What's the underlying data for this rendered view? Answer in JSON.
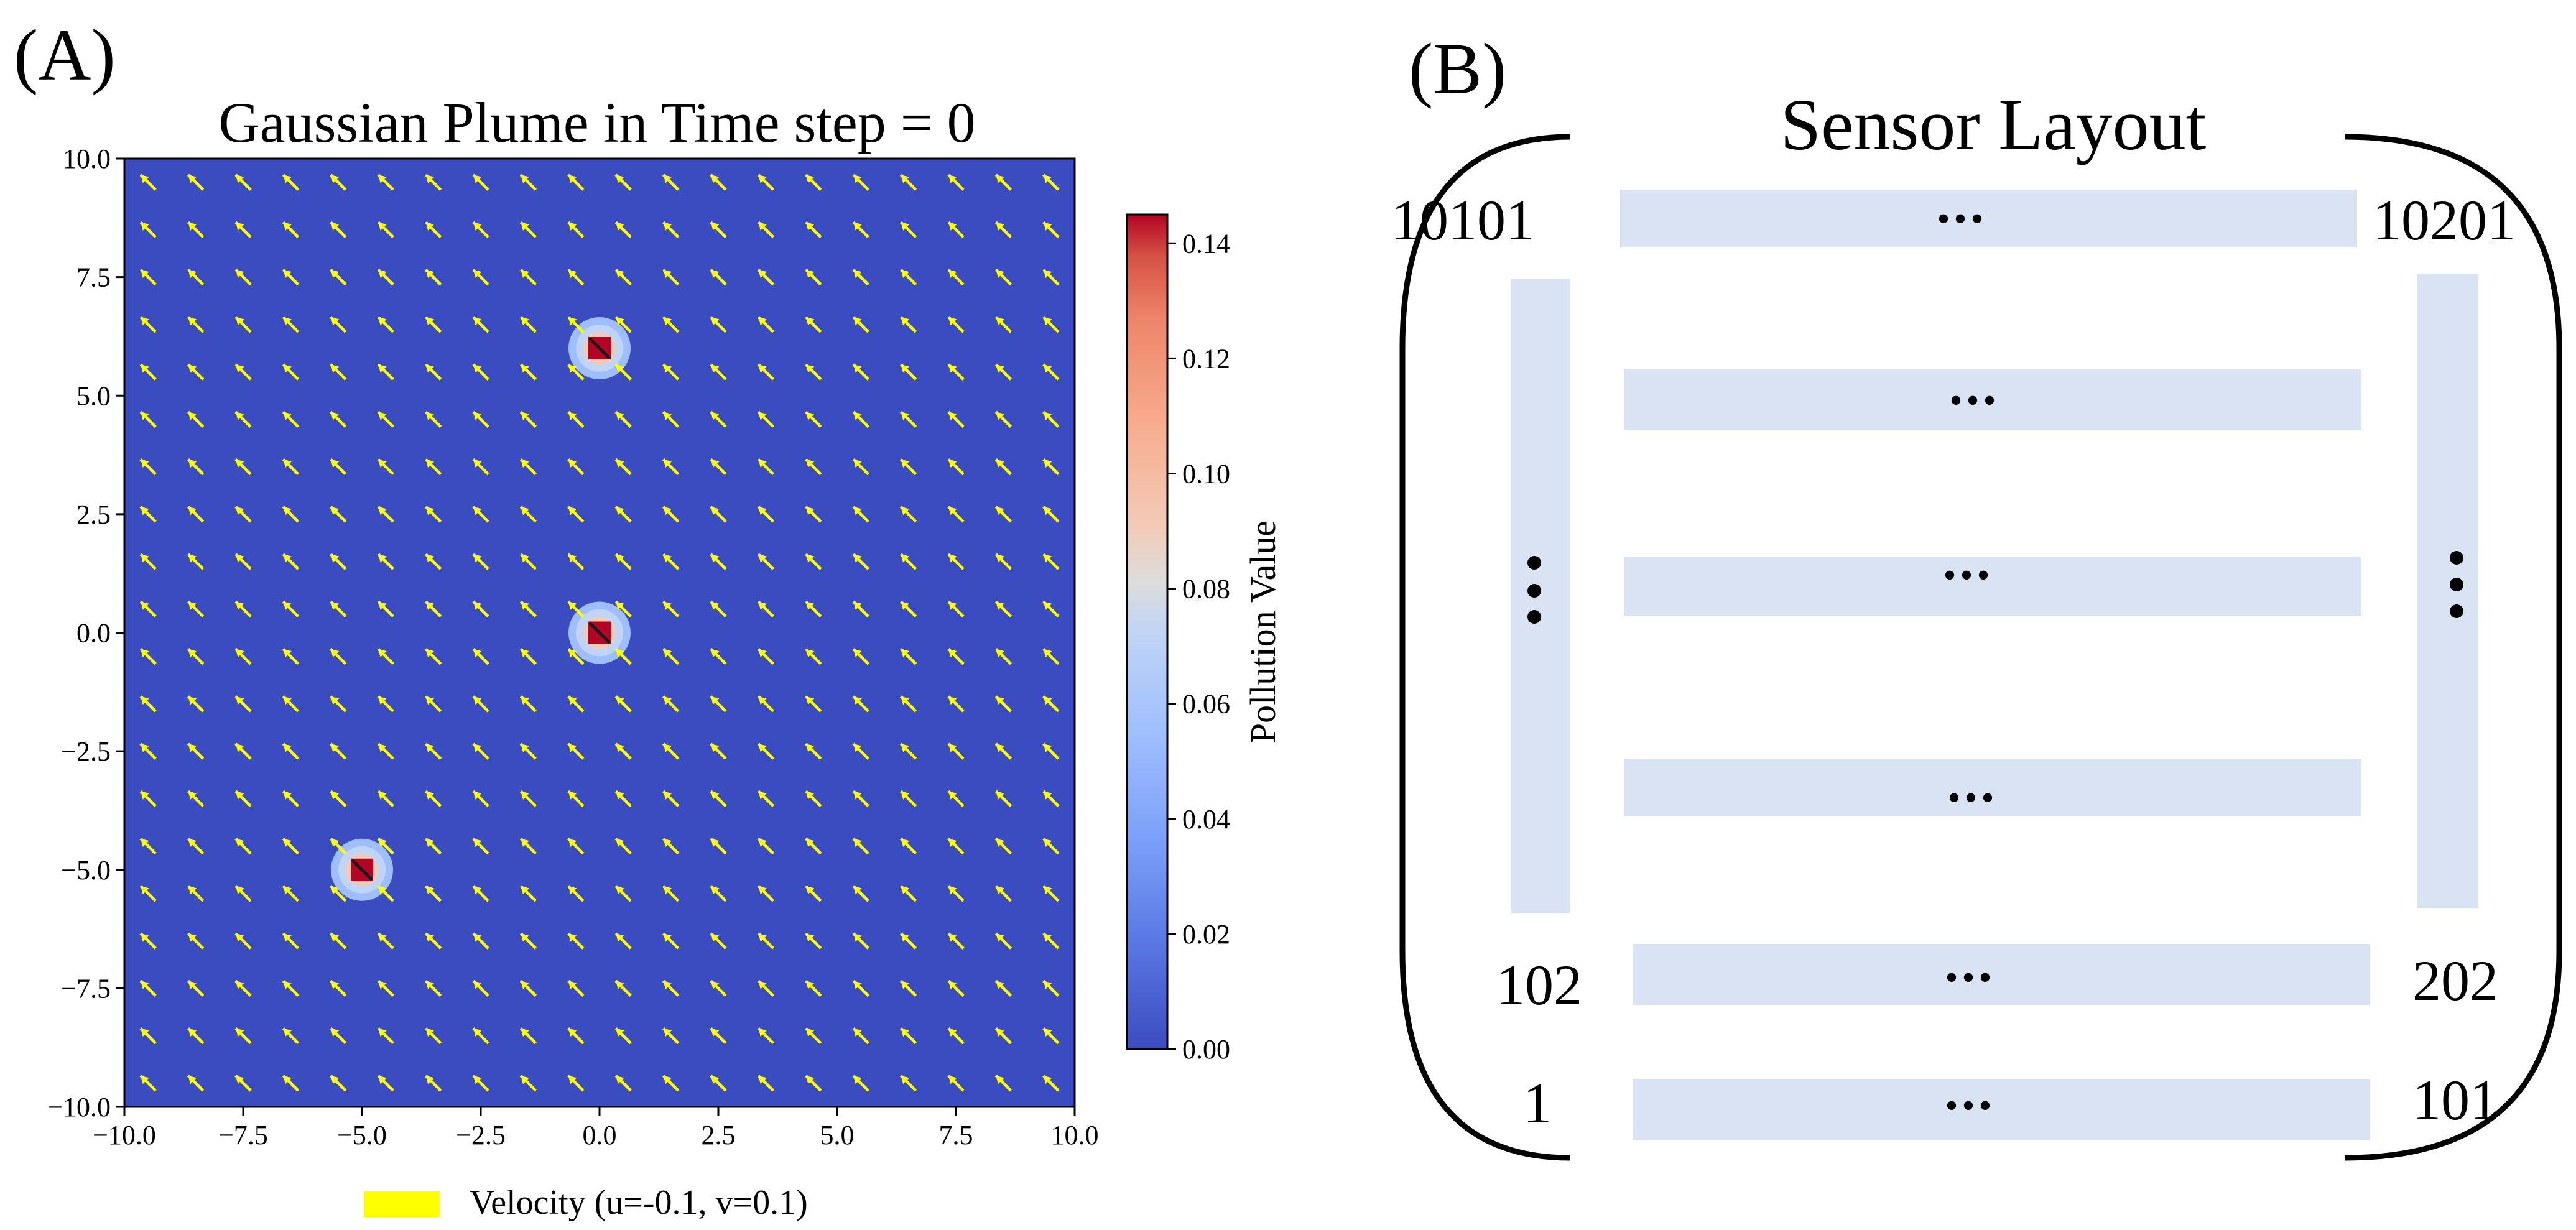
{
  "panel_a": {
    "label": "(A)",
    "chart_data": {
      "type": "heatmap",
      "title": "Gaussian Plume in Time step = 0",
      "xlim": [
        -10,
        10
      ],
      "ylim": [
        -10,
        10
      ],
      "x_ticks": [
        -10,
        -7.5,
        -5,
        -2.5,
        0,
        2.5,
        5,
        7.5,
        10
      ],
      "x_tick_labels": [
        "−10.0",
        "−7.5",
        "−5.0",
        "−2.5",
        "0.0",
        "2.5",
        "5.0",
        "7.5",
        "10.0"
      ],
      "y_ticks": [
        10,
        7.5,
        5,
        2.5,
        0,
        -2.5,
        -5,
        -7.5,
        -10
      ],
      "y_tick_labels": [
        "10.0",
        "7.5",
        "5.0",
        "2.5",
        "0.0",
        "−2.5",
        "−5.0",
        "−7.5",
        "−10.0"
      ],
      "sources": [
        {
          "x": 0,
          "y": 6,
          "peak": 0.145
        },
        {
          "x": 0,
          "y": 0,
          "peak": 0.145
        },
        {
          "x": -5,
          "y": -5,
          "peak": 0.145
        }
      ],
      "quiver": {
        "u": -0.1,
        "v": 0.1,
        "x_start": -9.5,
        "y_start": -9.5,
        "step": 1,
        "count": 20,
        "color": "#ffff00"
      },
      "colorbar": {
        "label": "Pollution Value",
        "vmin": 0,
        "vmax": 0.145,
        "ticks": [
          0,
          0.02,
          0.04,
          0.06,
          0.08,
          0.1,
          0.12,
          0.14
        ],
        "tick_labels": [
          "0.00",
          "0.02",
          "0.04",
          "0.06",
          "0.08",
          "0.10",
          "0.12",
          "0.14"
        ],
        "colormap": "coolwarm"
      },
      "legend": {
        "label": "Velocity (u=-0.1, v=0.1)",
        "color": "#ffff00",
        "placement": "bottom-center"
      }
    }
  },
  "panel_b": {
    "label": "(B)",
    "title": "Sensor Layout",
    "bar_color": "#dae3f3",
    "sensor_labels": {
      "top_left": "10101",
      "top_right": "10201",
      "upper_left": "102",
      "upper_right": "202",
      "bottom_left": "1",
      "bottom_right": "101"
    },
    "ellipsis_mark": "•••",
    "row_count": 6
  }
}
